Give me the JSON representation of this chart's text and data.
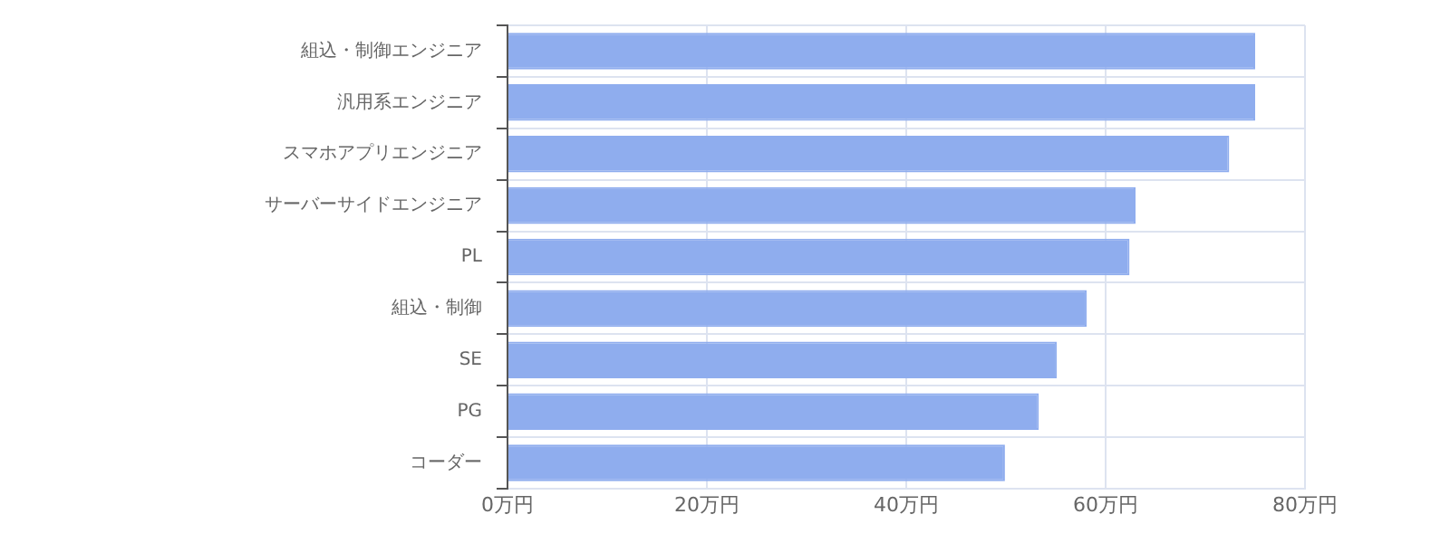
{
  "chart_data": {
    "type": "bar",
    "orientation": "horizontal",
    "categories": [
      "組込・制御エンジニア",
      "汎用系エンジニア",
      "スマホアプリエンジニア",
      "サーバーサイドエンジニア",
      "PL",
      "組込・制御",
      "SE",
      "PG",
      "コーダー"
    ],
    "values": [
      75,
      75,
      72.4,
      63,
      62.4,
      58.1,
      55.1,
      53.3,
      49.9
    ],
    "color": "#8fadee",
    "xlim": [
      0,
      80
    ],
    "xticks": [
      {
        "value": 0,
        "label": "0万円"
      },
      {
        "value": 20,
        "label": "20万円"
      },
      {
        "value": 40,
        "label": "40万円"
      },
      {
        "value": 60,
        "label": "60万円"
      },
      {
        "value": 80,
        "label": "80万円"
      }
    ],
    "grid": true,
    "legend": false
  }
}
